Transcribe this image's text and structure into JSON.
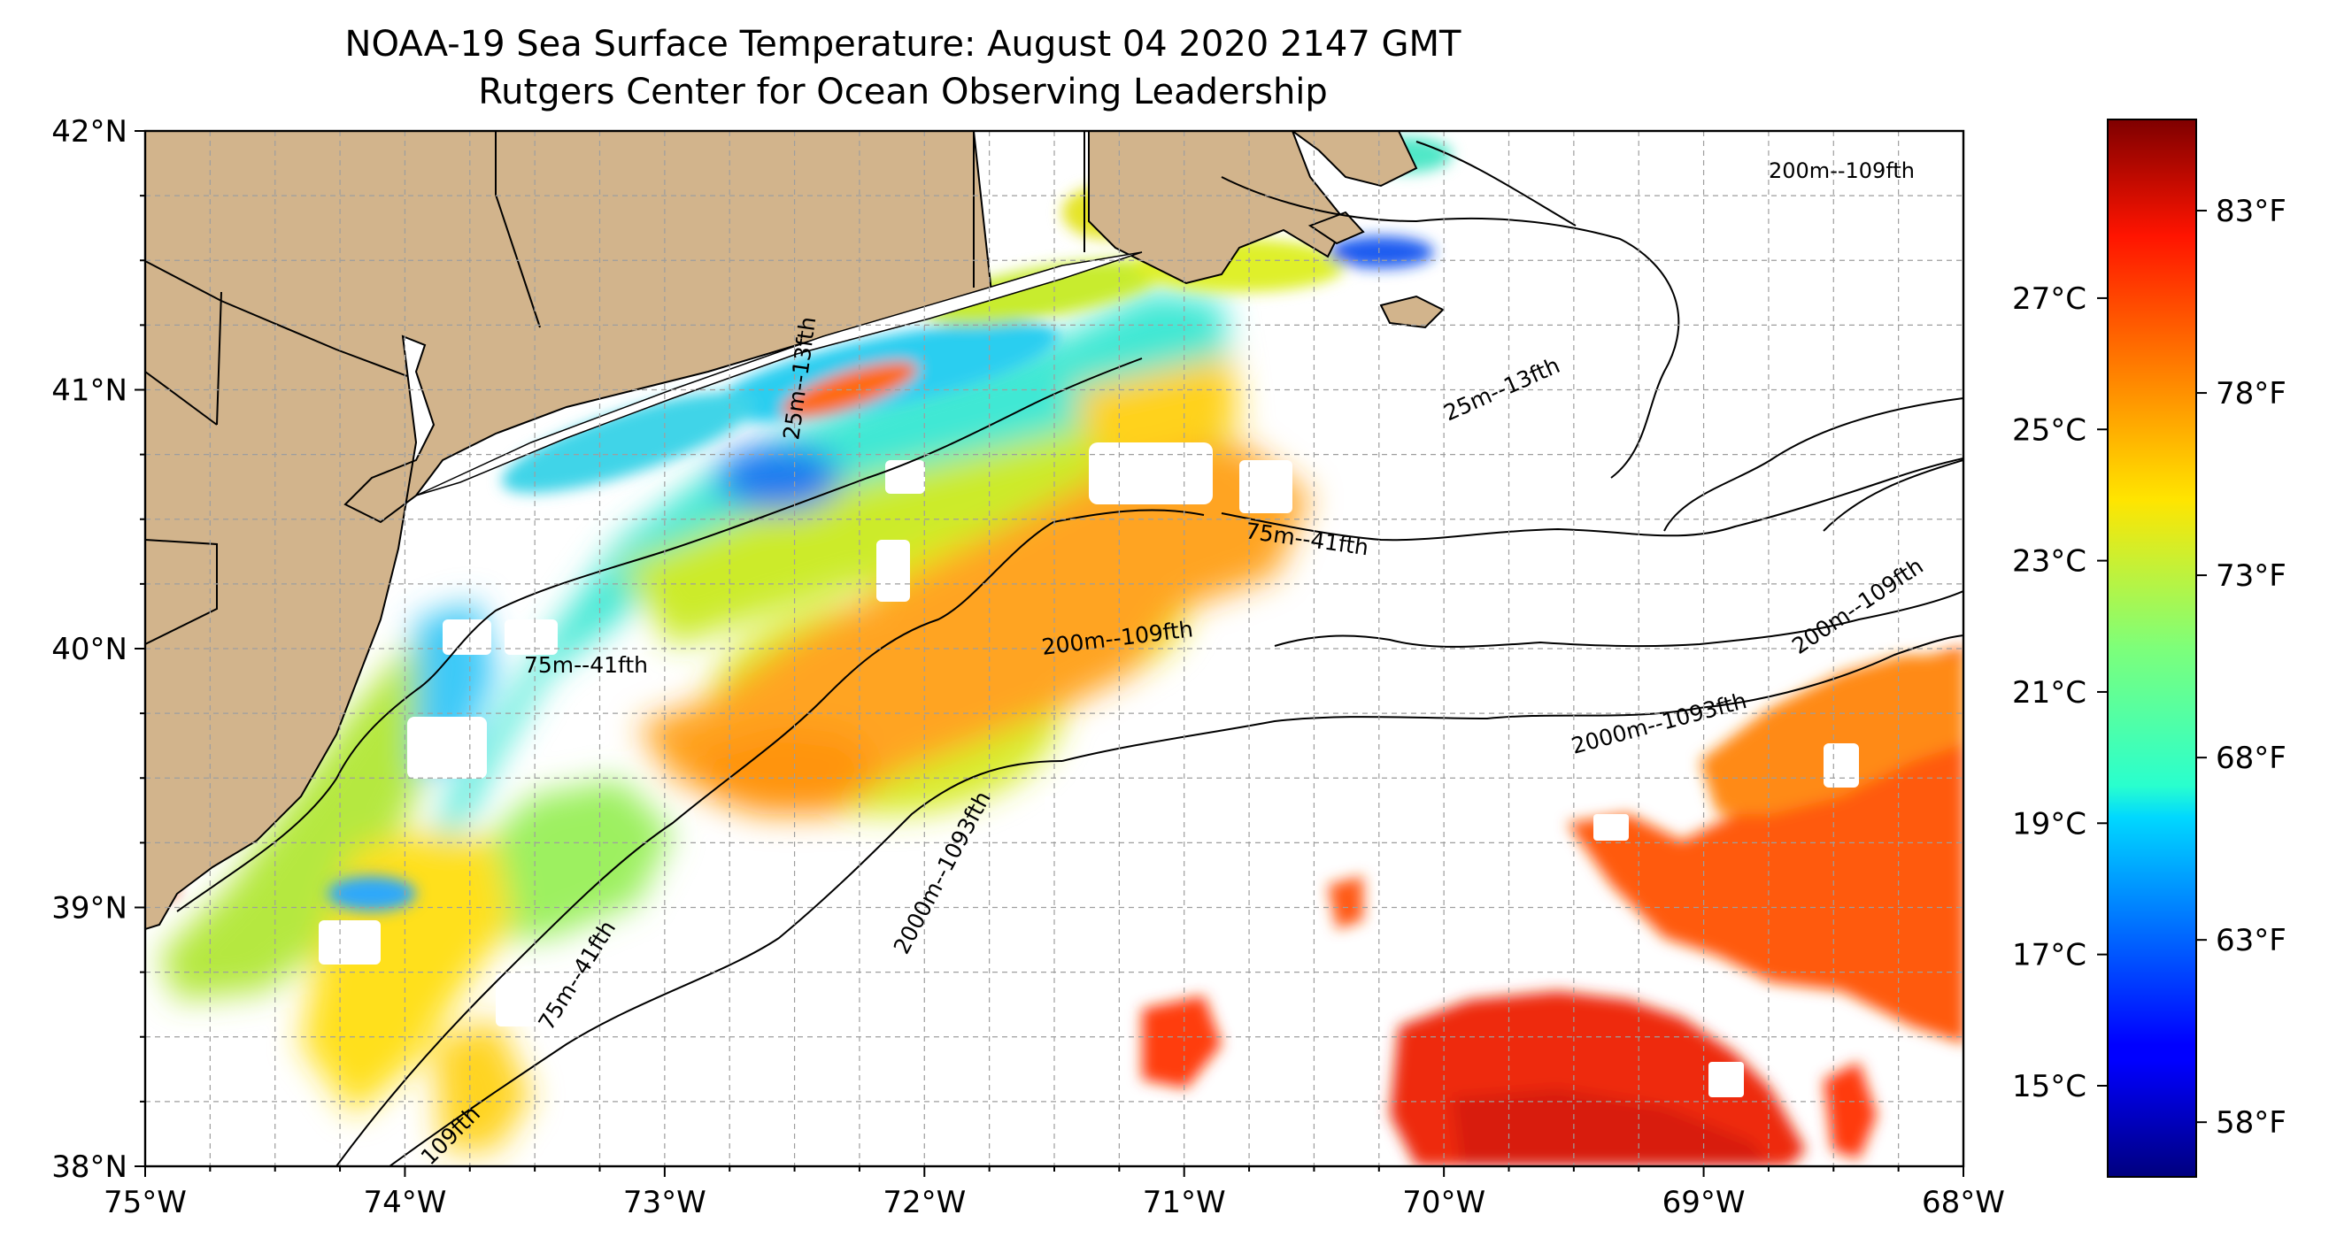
{
  "figure": {
    "title": "NOAA-19 Sea Surface Temperature: August 04 2020 2147 GMT",
    "subtitle": "Rutgers Center for Ocean Observing Leadership"
  },
  "map": {
    "lon_range": [
      -75,
      -68
    ],
    "lat_range": [
      38,
      42
    ],
    "gridlines": true,
    "lon_ticks": [
      "75°W",
      "74°W",
      "73°W",
      "72°W",
      "71°W",
      "70°W",
      "69°W",
      "68°W"
    ],
    "lat_ticks": [
      "38°N",
      "39°N",
      "40°N",
      "41°N",
      "42°N"
    ],
    "land_color": "#D2B48C",
    "no_data_color": "#FFFFFF",
    "isobath_labels": [
      {
        "text": "200m--109fth"
      },
      {
        "text": "25m--13fth"
      },
      {
        "text": "25m--13fth"
      },
      {
        "text": "75m--41fth"
      },
      {
        "text": "75m--41fth"
      },
      {
        "text": "200m--109fth"
      },
      {
        "text": "200m--109fth"
      },
      {
        "text": "2000m--1093fth"
      },
      {
        "text": "2000m--1093fth"
      },
      {
        "text": "75m--41fth"
      },
      {
        "text": "109fth"
      }
    ]
  },
  "colorbar": {
    "colormap": "jet",
    "range_f": [
      56.5,
      85.5
    ],
    "celsius_ticks": [
      "27°C",
      "25°C",
      "23°C",
      "21°C",
      "19°C",
      "17°C",
      "15°C"
    ],
    "fahrenheit_ticks": [
      "83°F",
      "78°F",
      "73°F",
      "68°F",
      "63°F",
      "58°F"
    ]
  }
}
